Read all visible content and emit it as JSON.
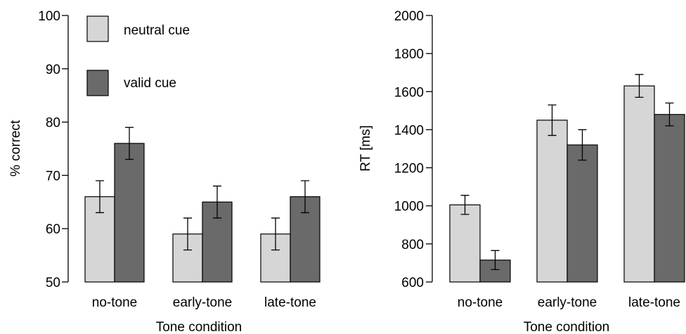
{
  "colors": {
    "neutral": "#d6d6d6",
    "valid": "#6a6a6a"
  },
  "legend": [
    {
      "label": "neutral cue",
      "color": "#d6d6d6"
    },
    {
      "label": "valid cue",
      "color": "#6a6a6a"
    }
  ],
  "chart_data": [
    {
      "type": "bar",
      "categories": [
        "no-tone",
        "early-tone",
        "late-tone"
      ],
      "series": [
        {
          "name": "neutral cue",
          "values": [
            66,
            59,
            59
          ],
          "error": [
            3,
            3,
            3
          ]
        },
        {
          "name": "valid cue",
          "values": [
            76,
            65,
            66
          ],
          "error": [
            3,
            3,
            3
          ]
        }
      ],
      "xlabel": "Tone condition",
      "ylabel": "% correct",
      "ylim": [
        50,
        100
      ],
      "yticks": [
        50,
        60,
        70,
        80,
        90,
        100
      ],
      "ytick_labels": [
        "50",
        "60",
        "70",
        "80",
        "90",
        "100"
      ],
      "legend_position": "top-left"
    },
    {
      "type": "bar",
      "categories": [
        "no-tone",
        "early-tone",
        "late-tone"
      ],
      "series": [
        {
          "name": "neutral cue",
          "values": [
            1005,
            1450,
            1630
          ],
          "error": [
            50,
            80,
            60
          ]
        },
        {
          "name": "valid cue",
          "values": [
            715,
            1320,
            1480
          ],
          "error": [
            50,
            80,
            60
          ]
        }
      ],
      "xlabel": "Tone condition",
      "ylabel": "RT [ms]",
      "ylim": [
        600,
        2000
      ],
      "yticks": [
        600,
        800,
        1000,
        1200,
        1400,
        1600,
        1800,
        2000
      ],
      "ytick_labels": [
        "600",
        "800",
        "1000",
        "1200",
        "1400",
        "1600",
        "1800",
        "2000"
      ]
    }
  ]
}
